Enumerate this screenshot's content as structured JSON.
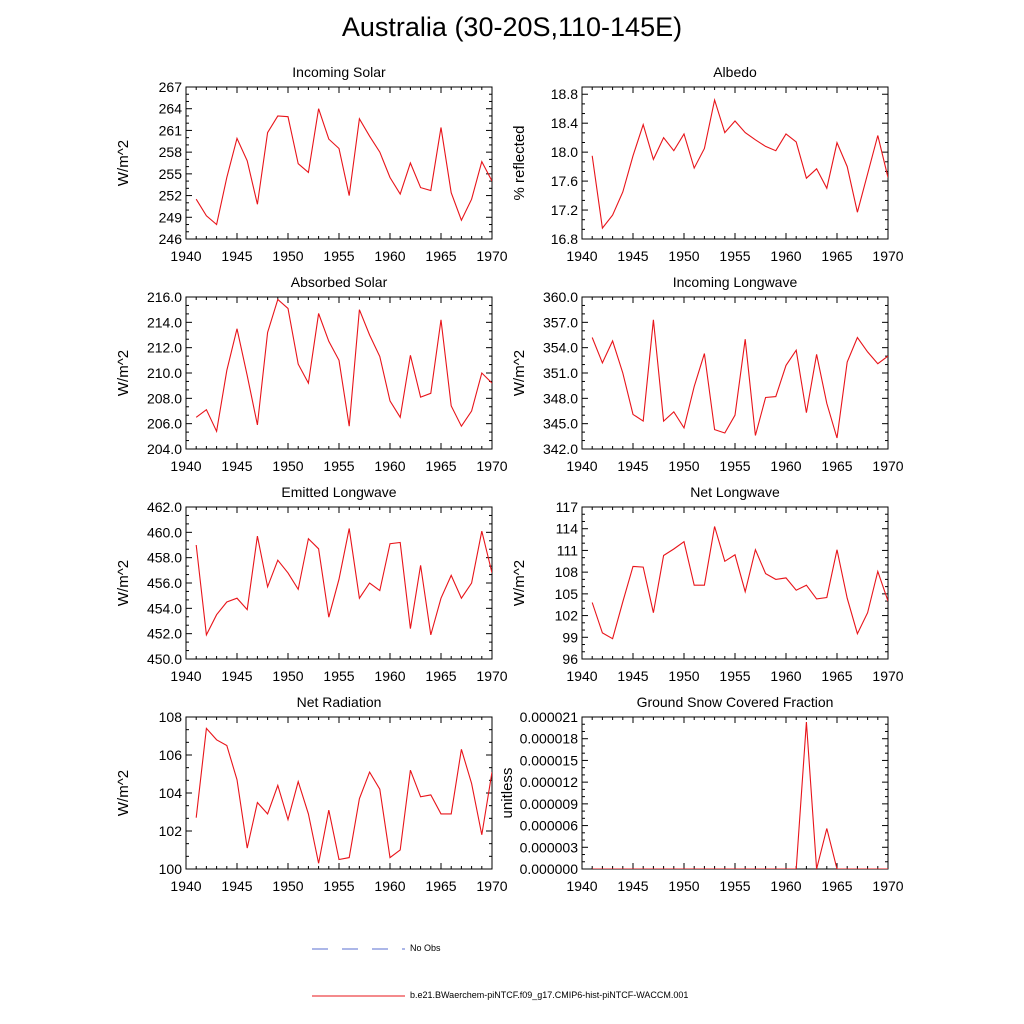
{
  "figure": {
    "title": "Australia (30-20S,110-145E)",
    "line_color": "#e8141a",
    "obs_color": "#5a6fd0"
  },
  "legend": {
    "obs_label": "No Obs",
    "model_label": "b.e21.BWaerchem-piNTCF.f09_g17.CMIP6-hist-piNTCF-WACCM.001"
  },
  "chart_data": [
    {
      "type": "line",
      "title": "Incoming Solar",
      "ylabel": "W/m^2",
      "xlim": [
        1940,
        1970
      ],
      "ylim": [
        246,
        267
      ],
      "xticks": [
        "1940",
        "1945",
        "1950",
        "1955",
        "1960",
        "1965",
        "1970"
      ],
      "yticks": [
        "246",
        "249",
        "252",
        "255",
        "258",
        "261",
        "264",
        "267"
      ],
      "series": [
        {
          "x": [
            1941,
            1942,
            1943,
            1944,
            1945,
            1946,
            1947,
            1948,
            1949,
            1950,
            1951,
            1952,
            1953,
            1954,
            1955,
            1956,
            1957,
            1958,
            1959,
            1960,
            1961,
            1962,
            1963,
            1964,
            1965,
            1966,
            1967,
            1968,
            1969,
            1970
          ],
          "y": [
            251.5,
            249.2,
            248.0,
            254.5,
            259.9,
            256.8,
            250.8,
            260.7,
            263.0,
            262.9,
            256.4,
            255.2,
            264.0,
            259.8,
            258.5,
            252.0,
            262.6,
            260.2,
            258.0,
            254.5,
            252.2,
            256.5,
            253.1,
            252.7,
            261.4,
            252.4,
            248.6,
            251.5,
            256.7,
            254.0
          ]
        }
      ]
    },
    {
      "type": "line",
      "title": "Albedo",
      "ylabel": "% reflected",
      "xlim": [
        1940,
        1970
      ],
      "ylim": [
        16.8,
        18.9
      ],
      "xticks": [
        "1940",
        "1945",
        "1950",
        "1955",
        "1960",
        "1965",
        "1970"
      ],
      "yticks": [
        "16.8",
        "17.2",
        "17.6",
        "18.0",
        "18.4",
        "18.8"
      ],
      "series": [
        {
          "x": [
            1941,
            1942,
            1943,
            1944,
            1945,
            1946,
            1947,
            1948,
            1949,
            1950,
            1951,
            1952,
            1953,
            1954,
            1955,
            1956,
            1957,
            1958,
            1959,
            1960,
            1961,
            1962,
            1963,
            1964,
            1965,
            1966,
            1967,
            1968,
            1969,
            1970
          ],
          "y": [
            17.95,
            16.95,
            17.13,
            17.45,
            17.95,
            18.38,
            17.9,
            18.2,
            18.02,
            18.25,
            17.78,
            18.05,
            18.72,
            18.27,
            18.43,
            18.27,
            18.17,
            18.08,
            18.02,
            18.25,
            18.14,
            17.64,
            17.77,
            17.5,
            18.13,
            17.8,
            17.17,
            17.7,
            18.23,
            17.65
          ]
        }
      ]
    },
    {
      "type": "line",
      "title": "Absorbed Solar",
      "ylabel": "W/m^2",
      "xlim": [
        1940,
        1970
      ],
      "ylim": [
        204.0,
        216.0
      ],
      "xticks": [
        "1940",
        "1945",
        "1950",
        "1955",
        "1960",
        "1965",
        "1970"
      ],
      "yticks": [
        "204.0",
        "206.0",
        "208.0",
        "210.0",
        "212.0",
        "214.0",
        "216.0"
      ],
      "series": [
        {
          "x": [
            1941,
            1942,
            1943,
            1944,
            1945,
            1946,
            1947,
            1948,
            1949,
            1950,
            1951,
            1952,
            1953,
            1954,
            1955,
            1956,
            1957,
            1958,
            1959,
            1960,
            1961,
            1962,
            1963,
            1964,
            1965,
            1966,
            1967,
            1968,
            1969,
            1970
          ],
          "y": [
            206.5,
            207.1,
            205.4,
            210.2,
            213.5,
            209.8,
            205.9,
            213.2,
            215.8,
            215.1,
            210.7,
            209.2,
            214.7,
            212.5,
            211.0,
            205.8,
            215.0,
            213.0,
            211.3,
            207.8,
            206.5,
            211.4,
            208.1,
            208.4,
            214.2,
            207.4,
            205.8,
            207.0,
            210.0,
            209.2
          ]
        }
      ]
    },
    {
      "type": "line",
      "title": "Incoming Longwave",
      "ylabel": "W/m^2",
      "xlim": [
        1940,
        1970
      ],
      "ylim": [
        342.0,
        360.0
      ],
      "xticks": [
        "1940",
        "1945",
        "1950",
        "1955",
        "1960",
        "1965",
        "1970"
      ],
      "yticks": [
        "342.0",
        "345.0",
        "348.0",
        "351.0",
        "354.0",
        "357.0",
        "360.0"
      ],
      "series": [
        {
          "x": [
            1941,
            1942,
            1943,
            1944,
            1945,
            1946,
            1947,
            1948,
            1949,
            1950,
            1951,
            1952,
            1953,
            1954,
            1955,
            1956,
            1957,
            1958,
            1959,
            1960,
            1961,
            1962,
            1963,
            1964,
            1965,
            1966,
            1967,
            1968,
            1969,
            1970
          ],
          "y": [
            355.2,
            352.2,
            354.8,
            351.0,
            346.1,
            345.3,
            357.3,
            345.3,
            346.4,
            344.5,
            349.4,
            353.3,
            344.3,
            343.9,
            346.0,
            355.0,
            343.6,
            348.1,
            348.2,
            351.9,
            353.7,
            346.3,
            353.2,
            347.4,
            343.3,
            352.3,
            355.2,
            353.5,
            352.1,
            353.0
          ]
        }
      ]
    },
    {
      "type": "line",
      "title": "Emitted Longwave",
      "ylabel": "W/m^2",
      "xlim": [
        1940,
        1970
      ],
      "ylim": [
        450.0,
        462.0
      ],
      "xticks": [
        "1940",
        "1945",
        "1950",
        "1955",
        "1960",
        "1965",
        "1970"
      ],
      "yticks": [
        "450.0",
        "452.0",
        "454.0",
        "456.0",
        "458.0",
        "460.0",
        "462.0"
      ],
      "series": [
        {
          "x": [
            1941,
            1942,
            1943,
            1944,
            1945,
            1946,
            1947,
            1948,
            1949,
            1950,
            1951,
            1952,
            1953,
            1954,
            1955,
            1956,
            1957,
            1958,
            1959,
            1960,
            1961,
            1962,
            1963,
            1964,
            1965,
            1966,
            1967,
            1968,
            1969,
            1970
          ],
          "y": [
            459.0,
            451.9,
            453.5,
            454.5,
            454.8,
            453.9,
            459.7,
            455.7,
            457.8,
            456.8,
            455.5,
            459.5,
            458.7,
            453.3,
            456.3,
            460.3,
            454.8,
            456.0,
            455.4,
            459.1,
            459.2,
            452.4,
            457.4,
            451.9,
            454.8,
            456.6,
            454.8,
            456.0,
            460.1,
            456.8
          ]
        }
      ]
    },
    {
      "type": "line",
      "title": "Net Longwave",
      "ylabel": "W/m^2",
      "xlim": [
        1940,
        1970
      ],
      "ylim": [
        96,
        117
      ],
      "xticks": [
        "1940",
        "1945",
        "1950",
        "1955",
        "1960",
        "1965",
        "1970"
      ],
      "yticks": [
        "96",
        "99",
        "102",
        "105",
        "108",
        "111",
        "114",
        "117"
      ],
      "series": [
        {
          "x": [
            1941,
            1942,
            1943,
            1944,
            1945,
            1946,
            1947,
            1948,
            1949,
            1950,
            1951,
            1952,
            1953,
            1954,
            1955,
            1956,
            1957,
            1958,
            1959,
            1960,
            1961,
            1962,
            1963,
            1964,
            1965,
            1966,
            1967,
            1968,
            1969,
            1970
          ],
          "y": [
            103.8,
            99.6,
            98.8,
            103.9,
            108.8,
            108.7,
            102.4,
            110.3,
            111.2,
            112.2,
            106.2,
            106.2,
            114.3,
            109.5,
            110.4,
            105.3,
            111.1,
            107.8,
            107.0,
            107.2,
            105.5,
            106.2,
            104.3,
            104.5,
            111.1,
            104.4,
            99.5,
            102.4,
            108.1,
            104.0
          ]
        }
      ]
    },
    {
      "type": "line",
      "title": "Net Radiation",
      "ylabel": "W/m^2",
      "xlim": [
        1940,
        1970
      ],
      "ylim": [
        100,
        108
      ],
      "xticks": [
        "1940",
        "1945",
        "1950",
        "1955",
        "1960",
        "1965",
        "1970"
      ],
      "yticks": [
        "100",
        "102",
        "104",
        "106",
        "108"
      ],
      "series": [
        {
          "x": [
            1941,
            1942,
            1943,
            1944,
            1945,
            1946,
            1947,
            1948,
            1949,
            1950,
            1951,
            1952,
            1953,
            1954,
            1955,
            1956,
            1957,
            1958,
            1959,
            1960,
            1961,
            1962,
            1963,
            1964,
            1965,
            1966,
            1967,
            1968,
            1969,
            1970
          ],
          "y": [
            102.7,
            107.4,
            106.8,
            106.5,
            104.7,
            101.1,
            103.5,
            102.9,
            104.4,
            102.6,
            104.6,
            102.9,
            100.3,
            103.1,
            100.5,
            100.6,
            103.7,
            105.1,
            104.2,
            100.6,
            101.0,
            105.2,
            103.8,
            103.9,
            102.9,
            102.9,
            106.3,
            104.5,
            101.8,
            105.1
          ]
        }
      ]
    },
    {
      "type": "line",
      "title": "Ground Snow Covered Fraction",
      "ylabel": "unitless",
      "xlim": [
        1940,
        1970
      ],
      "ylim": [
        0,
        2.1e-05
      ],
      "xticks": [
        "1940",
        "1945",
        "1950",
        "1955",
        "1960",
        "1965",
        "1970"
      ],
      "yticks": [
        "0.000000",
        "0.000003",
        "0.000006",
        "0.000009",
        "0.000012",
        "0.000015",
        "0.000018",
        "0.000021"
      ],
      "series": [
        {
          "x": [
            1941,
            1942,
            1943,
            1944,
            1945,
            1946,
            1947,
            1948,
            1949,
            1950,
            1951,
            1952,
            1953,
            1954,
            1955,
            1956,
            1957,
            1958,
            1959,
            1960,
            1961,
            1962,
            1963,
            1964,
            1965,
            1966,
            1967,
            1968,
            1969,
            1970
          ],
          "y": [
            0,
            0,
            0,
            0,
            0,
            0,
            0,
            0,
            0,
            0,
            0,
            0,
            0,
            0,
            0,
            0,
            0,
            0,
            0,
            0,
            0,
            2.03e-05,
            0,
            5.6e-06,
            0,
            0,
            0,
            0,
            0,
            0
          ]
        }
      ]
    }
  ]
}
